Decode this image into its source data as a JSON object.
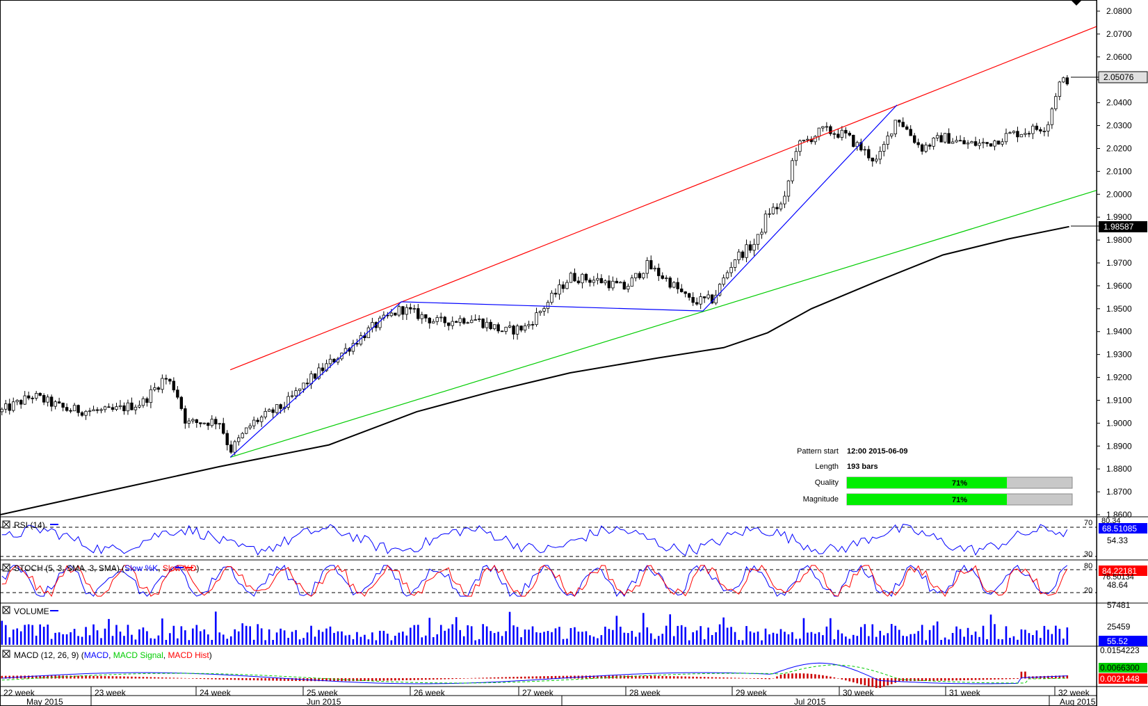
{
  "chart_data": {
    "type": "candlestick",
    "main": {
      "yticks": [
        "2.0800",
        "2.0700",
        "2.0600",
        "2.0500",
        "2.0400",
        "2.0300",
        "2.0200",
        "2.0100",
        "2.0000",
        "1.9900",
        "1.9800",
        "1.9700",
        "1.9600",
        "1.9500",
        "1.9400",
        "1.9300",
        "1.9200",
        "1.9100",
        "1.9000",
        "1.8900",
        "1.8800",
        "1.8700",
        "1.8600"
      ],
      "ylim": [
        1.86,
        2.08
      ],
      "current_price_label": "2.05076",
      "ma_price_label": "1.98587",
      "candles": [],
      "channel_upper": {
        "from": {
          "x": 0.21,
          "y": 1.9233
        },
        "to": {
          "x": 1.0,
          "y": 2.0733
        }
      },
      "channel_lower": {
        "from": {
          "x": 0.21,
          "y": 1.8851
        },
        "to": {
          "x": 1.0,
          "y": 2.0017
        }
      },
      "zigzag": [
        {
          "x": 0.21,
          "y": 1.8851
        },
        {
          "x": 0.366,
          "y": 1.953
        },
        {
          "x": 0.641,
          "y": 1.949
        },
        {
          "x": 0.818,
          "y": 2.039
        }
      ],
      "ma_path": [
        {
          "x": 0.0,
          "y": 1.86
        },
        {
          "x": 0.1,
          "y": 1.8705
        },
        {
          "x": 0.2,
          "y": 1.881
        },
        {
          "x": 0.3,
          "y": 1.8905
        },
        {
          "x": 0.38,
          "y": 1.905
        },
        {
          "x": 0.45,
          "y": 1.914
        },
        {
          "x": 0.52,
          "y": 1.922
        },
        {
          "x": 0.6,
          "y": 1.9285
        },
        {
          "x": 0.66,
          "y": 1.933
        },
        {
          "x": 0.7,
          "y": 1.9395
        },
        {
          "x": 0.74,
          "y": 1.95
        },
        {
          "x": 0.8,
          "y": 1.962
        },
        {
          "x": 0.86,
          "y": 1.9735
        },
        {
          "x": 0.92,
          "y": 1.9805
        },
        {
          "x": 0.975,
          "y": 1.98587
        }
      ]
    },
    "pattern_info": {
      "rows": [
        {
          "label": "Pattern start",
          "value": "12:00 2015-06-09"
        },
        {
          "label": "Length",
          "value": "193 bars"
        }
      ],
      "quality_label": "Quality",
      "quality_value": "71%",
      "quality_fraction": 0.71,
      "magnitude_label": "Magnitude",
      "magnitude_value": "71%",
      "magnitude_fraction": 0.71
    },
    "rsi": {
      "title": "RSI (14)",
      "levels": [
        "70",
        "30"
      ],
      "current_label": "68.51085",
      "mid_label": "54.33",
      "top_label": "80.34"
    },
    "stoch": {
      "title_prefix": "STOCH (5, 3, SMA, 3, SMA)",
      "series": [
        "Slow %K",
        "Slow %D"
      ],
      "levels": [
        "80",
        "20"
      ],
      "current_label": "84.22181",
      "second_label": "76.50134",
      "mid_label": "48.64"
    },
    "volume": {
      "title": "VOLUME",
      "top_label": "57481",
      "mid_label": "25459",
      "current_label": "55.52"
    },
    "macd": {
      "title_prefix": "MACD (12, 26, 9)",
      "series": [
        "MACD",
        "MACD Signal",
        "MACD Hist"
      ],
      "top_label": "0.0154223",
      "signal_label": "0.0066300",
      "hist_label": "0.0021448"
    },
    "x_axis": {
      "weeks": [
        "22 week",
        "23 week",
        "24 week",
        "25 week",
        "26 week",
        "27 week",
        "28 week",
        "29 week",
        "30 week",
        "31 week",
        "32 week"
      ],
      "months": [
        "May 2015",
        "Jun 2015",
        "Jul 2015",
        "Aug 2015"
      ]
    },
    "colors": {
      "up_candle": "#ffffff",
      "down_candle": "#000000",
      "channel_upper": "#ff0000",
      "channel_lower": "#00cc00",
      "zigzag": "#0000ff",
      "ma": "#000000",
      "rsi": "#0000ff",
      "stoch_k": "#0000ff",
      "stoch_d": "#ff0000",
      "volume": "#0000ff",
      "macd": "#0000ff",
      "macd_signal": "#00cc00",
      "macd_hist": "#cc0000",
      "quality_fill": "#00ee00",
      "quality_bg": "#c8c8c8",
      "label_blue_bg": "#0000ff",
      "label_red_bg": "#ff0000",
      "label_green_bg": "#00cc00"
    }
  }
}
